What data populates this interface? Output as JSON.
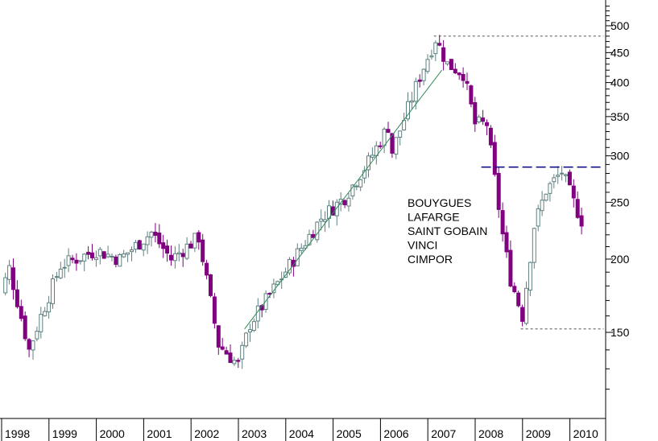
{
  "chart_data": {
    "type": "candlestick",
    "title": "",
    "xlabel": "",
    "ylabel": "",
    "y_scale": "log",
    "y_ticks": [
      150,
      200,
      250,
      300,
      350,
      400,
      450,
      500
    ],
    "y_axis_position": "right",
    "x_ticks": [
      "1998",
      "1999",
      "2000",
      "2001",
      "2002",
      "2003",
      "2004",
      "2005",
      "2006",
      "2007",
      "2008",
      "2009",
      "2010"
    ],
    "grid": false,
    "legend_placement": "center",
    "legend_items": [
      "BOUYGUES",
      "LAFARGE",
      "SAINT GOBAIN",
      "VINCI",
      "CIMPOR"
    ],
    "colors": {
      "up": "#5f8080",
      "down": "#800080",
      "trend_support": "#2e8b57",
      "resistance": "#000080",
      "level": "#555555"
    },
    "anchors": [
      [
        "1998-01",
        160
      ],
      [
        "1998-05",
        193
      ],
      [
        "1998-10",
        140
      ],
      [
        "1999-01",
        160
      ],
      [
        "1999-06",
        195
      ],
      [
        "2000-03",
        207
      ],
      [
        "2000-09",
        200
      ],
      [
        "2001-05",
        222
      ],
      [
        "2001-10",
        200
      ],
      [
        "2002-05",
        218
      ],
      [
        "2002-10",
        143
      ],
      [
        "2003-03",
        132
      ],
      [
        "2003-06",
        155
      ],
      [
        "2004-01",
        182
      ],
      [
        "2004-12",
        235
      ],
      [
        "2005-06",
        255
      ],
      [
        "2005-12",
        293
      ],
      [
        "2006-05",
        337
      ],
      [
        "2006-06",
        305
      ],
      [
        "2007-01",
        410
      ],
      [
        "2007-05",
        475
      ],
      [
        "2007-08",
        430
      ],
      [
        "2007-12",
        415
      ],
      [
        "2008-03",
        340
      ],
      [
        "2008-06",
        340
      ],
      [
        "2008-10",
        220
      ],
      [
        "2008-12",
        185
      ],
      [
        "2009-03",
        160
      ],
      [
        "2009-06",
        228
      ],
      [
        "2009-09",
        262
      ],
      [
        "2010-01",
        282
      ],
      [
        "2010-04",
        250
      ],
      [
        "2010-06",
        233
      ]
    ],
    "trendline": {
      "from": [
        "2003-05",
        152
      ],
      "to": [
        "2007-07",
        420
      ]
    },
    "resistance_line": {
      "from": [
        "2008-05",
        287
      ],
      "to": [
        "2010-12",
        287
      ]
    },
    "level_lines": [
      {
        "from": [
          "2007-05",
          480
        ],
        "to": [
          "2010-12",
          480
        ]
      },
      {
        "from": [
          "2009-03",
          152
        ],
        "to": [
          "2010-12",
          152
        ]
      }
    ]
  }
}
